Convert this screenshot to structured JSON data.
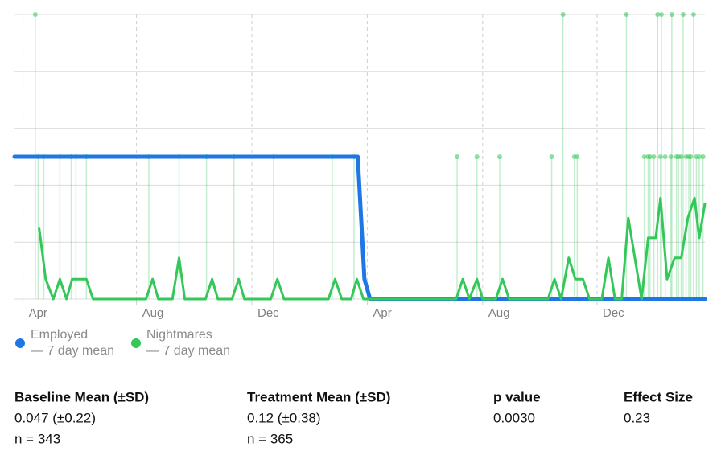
{
  "chart_data": {
    "type": "line",
    "xlim": [
      0,
      730
    ],
    "ylim": [
      0,
      2
    ],
    "xticks": [
      {
        "value": 9,
        "label": "Apr"
      },
      {
        "value": 129,
        "label": "Aug"
      },
      {
        "value": 251,
        "label": "Dec"
      },
      {
        "value": 373,
        "label": "Apr"
      },
      {
        "value": 495,
        "label": "Aug"
      },
      {
        "value": 616,
        "label": "Dec"
      }
    ],
    "yticks": [
      0,
      0.4,
      0.8,
      1.2,
      1.6,
      2
    ],
    "grid": true,
    "series": [
      {
        "name": "Employed",
        "sublabel": "— 7 day mean",
        "color": "#1f77e6",
        "x": [
          0,
          363,
          370,
          376,
          730
        ],
        "values": [
          1,
          1,
          0.14,
          0,
          0
        ]
      },
      {
        "name": "Nightmares",
        "sublabel": "— 7 day mean",
        "color": "#34c759",
        "x": [
          0,
          26,
          33,
          41,
          48,
          55,
          61,
          76,
          83,
          139,
          146,
          152,
          167,
          174,
          180,
          202,
          209,
          215,
          230,
          237,
          243,
          271,
          278,
          285,
          332,
          339,
          346,
          356,
          362,
          369,
          467,
          474,
          481,
          489,
          495,
          509,
          516,
          523,
          564,
          571,
          578,
          586,
          593,
          601,
          608,
          621,
          628,
          635,
          642,
          649,
          663,
          670,
          678,
          683,
          690,
          698,
          705,
          712,
          719,
          724,
          730
        ],
        "values": [
          null,
          0.5,
          0.14,
          0,
          0.14,
          0,
          0.14,
          0.14,
          0,
          0,
          0.14,
          0,
          0,
          0.29,
          0,
          0,
          0.14,
          0,
          0,
          0.14,
          0,
          0,
          0.14,
          0,
          0,
          0.14,
          0,
          0,
          0.14,
          0,
          0,
          0.14,
          0,
          0.14,
          0,
          0,
          0.14,
          0,
          0,
          0.14,
          0,
          0.29,
          0.14,
          0.14,
          0,
          0,
          0.29,
          0,
          0,
          0.57,
          0,
          0.43,
          0.43,
          0.71,
          0.14,
          0.29,
          0.29,
          0.57,
          0.71,
          0.43,
          0.67
        ],
        "raw": {
          "x": [
            22,
            25,
            31,
            48,
            60,
            65,
            76,
            142,
            174,
            203,
            232,
            274,
            336,
            359,
            468,
            489,
            513,
            568,
            580,
            592,
            595,
            647,
            666,
            670,
            672,
            676,
            680,
            683,
            684,
            688,
            694,
            695,
            700,
            702,
            705,
            707,
            710,
            713,
            715,
            718,
            721,
            724,
            728
          ],
          "values": [
            2,
            1,
            1,
            1,
            1,
            1,
            1,
            1,
            1,
            1,
            1,
            1,
            1,
            1,
            1,
            1,
            1,
            1,
            2,
            1,
            1,
            2,
            1,
            1,
            1,
            1,
            2,
            1,
            2,
            1,
            1,
            2,
            1,
            1,
            1,
            2,
            1,
            1,
            1,
            2,
            1,
            1,
            1
          ]
        }
      }
    ]
  },
  "stats": [
    {
      "title": "Baseline Mean (±SD)",
      "value": "0.047 (±0.22)",
      "n": "n = 343"
    },
    {
      "title": "Treatment Mean (±SD)",
      "value": "0.12 (±0.38)",
      "n": "n = 365"
    },
    {
      "title": "p value",
      "value": "0.0030"
    },
    {
      "title": "Effect Size",
      "value": "0.23"
    }
  ]
}
